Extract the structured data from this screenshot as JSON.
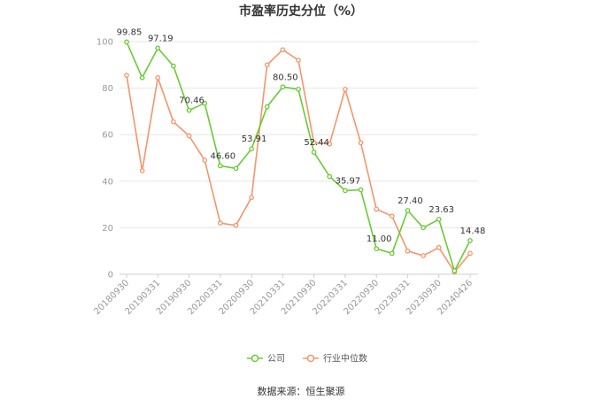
{
  "chart_data": {
    "type": "line",
    "title": "市盈率历史分位（%）",
    "x_tick_labels": [
      "20180930",
      "20190331",
      "20190930",
      "20200331",
      "20200930",
      "20210331",
      "20210930",
      "20220331",
      "20220930",
      "20230331",
      "20230930",
      "20240426"
    ],
    "ylim": [
      0,
      100
    ],
    "y_ticks": [
      0,
      20,
      40,
      60,
      80,
      100
    ],
    "grid": true,
    "legend_position": "bottom",
    "series": [
      {
        "name": "公司",
        "color": "#66cc33",
        "values": [
          99.85,
          84.5,
          97.19,
          89.5,
          70.46,
          73.5,
          46.6,
          45.5,
          53.91,
          72.0,
          80.5,
          79.5,
          52.44,
          42.0,
          35.97,
          36.3,
          11.0,
          9.0,
          27.4,
          20.0,
          23.63,
          1.5,
          14.48
        ],
        "labels": {
          "0": "99.85",
          "2": "97.19",
          "4": "70.46",
          "6": "46.60",
          "8": "53.91",
          "10": "80.50",
          "12": "52.44",
          "14": "35.97",
          "16": "11.00",
          "18": "27.40",
          "20": "23.63",
          "22": "14.48"
        }
      },
      {
        "name": "行业中位数",
        "color": "#f4956b",
        "values": [
          85.5,
          44.5,
          84.5,
          65.5,
          59.5,
          49.0,
          22.0,
          21.0,
          33.0,
          90.0,
          96.5,
          92.0,
          56.5,
          56.0,
          79.5,
          56.5,
          28.0,
          25.0,
          10.0,
          8.0,
          11.5,
          1.0,
          9.0
        ]
      }
    ]
  },
  "source": "数据来源：恒生聚源"
}
